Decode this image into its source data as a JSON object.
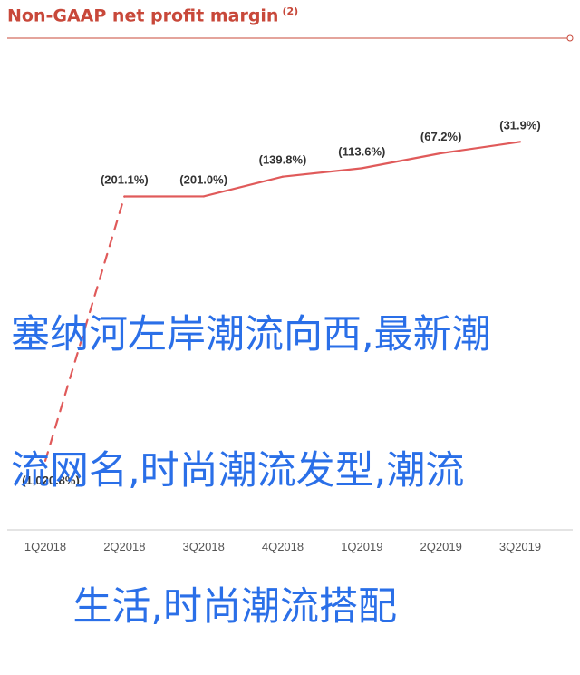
{
  "chart_data": {
    "type": "line",
    "title": "Non-GAAP net profit margin",
    "title_note": "(2)",
    "categories": [
      "1Q2018",
      "2Q2018",
      "3Q2018",
      "4Q2018",
      "1Q2019",
      "2Q2019",
      "3Q2019"
    ],
    "values": [
      -1020.8,
      -201.1,
      -201.0,
      -139.8,
      -113.6,
      -67.2,
      -31.9
    ],
    "value_labels": [
      "(1,020.8%)",
      "(201.1%)",
      "(201.0%)",
      "(139.8%)",
      "(113.6%)",
      "(67.2%)",
      "(31.9%)"
    ],
    "dashed_segments": [
      0
    ],
    "ylim": [
      -1100,
      0
    ],
    "grid": false,
    "legend": "none",
    "colors": {
      "line": "#e05a5a",
      "title": "#c8483a",
      "axis": "#c8c8c8",
      "labels": "#333333"
    }
  },
  "overlay_text": {
    "lines": [
      "塞纳河左岸潮流向西,最新潮",
      "流网名,时尚潮流发型,潮流",
      "     生活,时尚潮流搭配"
    ],
    "color": "#2a6fe8"
  }
}
